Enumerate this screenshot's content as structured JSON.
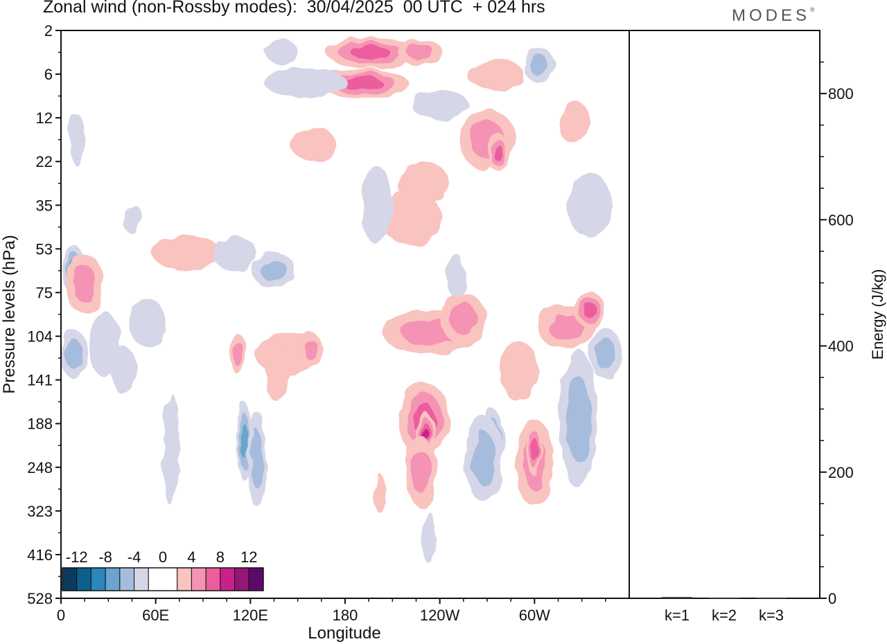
{
  "header": {
    "title": "Zonal wind (non-Rossby modes):  30/04/2025  00 UTC  + 024 hrs",
    "brand": "MODES"
  },
  "colors": {
    "negative": [
      "#0b3a5c",
      "#0d5f8c",
      "#2a86bd",
      "#6aa4cf",
      "#a6bcdc",
      "#d5d6e8"
    ],
    "neutral": "#ffffff",
    "positive": [
      "#f9c3c0",
      "#f593b4",
      "#ec5d9d",
      "#c8228a",
      "#951677",
      "#5c0a6a"
    ]
  },
  "chart_data": [
    {
      "type": "heatmap",
      "xlabel": "Longitude",
      "ylabel": "Pressure levels (hPa)",
      "x_ticks": [
        "0",
        "60E",
        "120E",
        "180",
        "120W",
        "60W"
      ],
      "y_ticks": [
        "2",
        "6",
        "12",
        "22",
        "35",
        "53",
        "75",
        "104",
        "141",
        "188",
        "248",
        "323",
        "416",
        "528"
      ],
      "colorbar_labels": [
        "-12",
        "-8",
        "-4",
        "0",
        "4",
        "8",
        "12"
      ],
      "colorbar_bounds": [
        -14,
        -12,
        -10,
        -8,
        -6,
        -4,
        -2,
        2,
        4,
        6,
        8,
        10,
        12,
        14
      ],
      "blobs": [
        {
          "lon": 8,
          "lev": 5.5,
          "w": 7,
          "h": 1.0,
          "v": -7
        },
        {
          "lon": 8,
          "lev": 7.4,
          "w": 9,
          "h": 0.9,
          "v": -5
        },
        {
          "lon": 15,
          "lev": 5.8,
          "w": 12,
          "h": 1.2,
          "v": 4
        },
        {
          "lon": 28,
          "lev": 7.2,
          "w": 10,
          "h": 1.3,
          "v": -3
        },
        {
          "lon": 40,
          "lev": 7.8,
          "w": 8,
          "h": 0.9,
          "v": -3
        },
        {
          "lon": 70,
          "lev": 9.6,
          "w": 5,
          "h": 2.4,
          "v": -3
        },
        {
          "lon": 55,
          "lev": 6.7,
          "w": 12,
          "h": 0.9,
          "v": -3
        },
        {
          "lon": 80,
          "lev": 5.1,
          "w": 22,
          "h": 0.6,
          "v": 3
        },
        {
          "lon": 116,
          "lev": 9.4,
          "w": 5,
          "h": 1.6,
          "v": -7
        },
        {
          "lon": 124,
          "lev": 9.8,
          "w": 6,
          "h": 2.0,
          "v": -4
        },
        {
          "lon": 112,
          "lev": 7.4,
          "w": 6,
          "h": 0.7,
          "v": 4
        },
        {
          "lon": 135,
          "lev": 5.5,
          "w": 14,
          "h": 0.6,
          "v": -4
        },
        {
          "lon": 145,
          "lev": 7.4,
          "w": 22,
          "h": 0.8,
          "v": 3
        },
        {
          "lon": 137,
          "lev": 7.9,
          "w": 8,
          "h": 1.0,
          "v": 3
        },
        {
          "lon": 158,
          "lev": 7.3,
          "w": 7,
          "h": 0.6,
          "v": 5
        },
        {
          "lon": 190,
          "lev": 1.2,
          "w": 30,
          "h": 0.5,
          "v": 6
        },
        {
          "lon": 196,
          "lev": 0.5,
          "w": 28,
          "h": 0.5,
          "v": 6
        },
        {
          "lon": 228,
          "lev": 0.5,
          "w": 14,
          "h": 0.4,
          "v": 5
        },
        {
          "lon": 155,
          "lev": 1.2,
          "w": 26,
          "h": 0.5,
          "v": -3
        },
        {
          "lon": 140,
          "lev": 0.5,
          "w": 10,
          "h": 0.4,
          "v": -3
        },
        {
          "lon": 160,
          "lev": 2.6,
          "w": 14,
          "h": 0.6,
          "v": 3
        },
        {
          "lon": 240,
          "lev": 1.7,
          "w": 18,
          "h": 0.5,
          "v": -3
        },
        {
          "lon": 275,
          "lev": 1.0,
          "w": 18,
          "h": 0.5,
          "v": 3
        },
        {
          "lon": 303,
          "lev": 0.8,
          "w": 10,
          "h": 0.6,
          "v": -5
        },
        {
          "lon": 270,
          "lev": 2.5,
          "w": 18,
          "h": 1.2,
          "v": 4
        },
        {
          "lon": 277,
          "lev": 2.8,
          "w": 6,
          "h": 0.7,
          "v": 6
        },
        {
          "lon": 230,
          "lev": 3.5,
          "w": 16,
          "h": 0.8,
          "v": 3
        },
        {
          "lon": 222,
          "lev": 4.3,
          "w": 20,
          "h": 1.0,
          "v": 3
        },
        {
          "lon": 200,
          "lev": 4.0,
          "w": 10,
          "h": 1.6,
          "v": -3
        },
        {
          "lon": 235,
          "lev": 6.9,
          "w": 32,
          "h": 0.8,
          "v": 4
        },
        {
          "lon": 255,
          "lev": 6.6,
          "w": 14,
          "h": 1.0,
          "v": 4
        },
        {
          "lon": 230,
          "lev": 8.9,
          "w": 16,
          "h": 1.5,
          "v": 7
        },
        {
          "lon": 231,
          "lev": 9.3,
          "w": 6,
          "h": 0.9,
          "v": 9
        },
        {
          "lon": 228,
          "lev": 10.1,
          "w": 10,
          "h": 1.4,
          "v": 4
        },
        {
          "lon": 273,
          "lev": 9.6,
          "w": 8,
          "h": 1.7,
          "v": -8
        },
        {
          "lon": 268,
          "lev": 9.8,
          "w": 12,
          "h": 1.8,
          "v": -4
        },
        {
          "lon": 300,
          "lev": 9.9,
          "w": 12,
          "h": 1.8,
          "v": 4
        },
        {
          "lon": 300,
          "lev": 9.6,
          "w": 5,
          "h": 1.0,
          "v": 6
        },
        {
          "lon": 328,
          "lev": 8.9,
          "w": 12,
          "h": 3.0,
          "v": -4
        },
        {
          "lon": 345,
          "lev": 7.4,
          "w": 10,
          "h": 1.0,
          "v": -4
        },
        {
          "lon": 320,
          "lev": 6.8,
          "w": 18,
          "h": 0.8,
          "v": 4
        },
        {
          "lon": 335,
          "lev": 6.4,
          "w": 10,
          "h": 0.6,
          "v": 6
        },
        {
          "lon": 290,
          "lev": 7.8,
          "w": 12,
          "h": 1.2,
          "v": 3
        },
        {
          "lon": 335,
          "lev": 4.0,
          "w": 14,
          "h": 1.3,
          "v": -3
        },
        {
          "lon": 325,
          "lev": 2.1,
          "w": 10,
          "h": 0.8,
          "v": 3
        },
        {
          "lon": 110,
          "lev": 5.1,
          "w": 14,
          "h": 0.6,
          "v": -3
        },
        {
          "lon": 45,
          "lev": 4.3,
          "w": 6,
          "h": 0.5,
          "v": -3
        },
        {
          "lon": 10,
          "lev": 2.5,
          "w": 5,
          "h": 1.0,
          "v": -3
        },
        {
          "lon": 250,
          "lev": 5.6,
          "w": 6,
          "h": 0.8,
          "v": -3
        },
        {
          "lon": 233,
          "lev": 11.6,
          "w": 4,
          "h": 1.0,
          "v": -3
        },
        {
          "lon": 202,
          "lev": 10.6,
          "w": 4,
          "h": 0.7,
          "v": 3
        }
      ]
    },
    {
      "type": "bar",
      "ylabel": "Energy (J/kg)",
      "categories": [
        "k=1",
        "k=2",
        "k=3"
      ],
      "values": [
        2,
        1,
        1
      ],
      "ylim": [
        0,
        900
      ],
      "y_ticks": [
        "0",
        "200",
        "400",
        "600",
        "800"
      ]
    }
  ]
}
